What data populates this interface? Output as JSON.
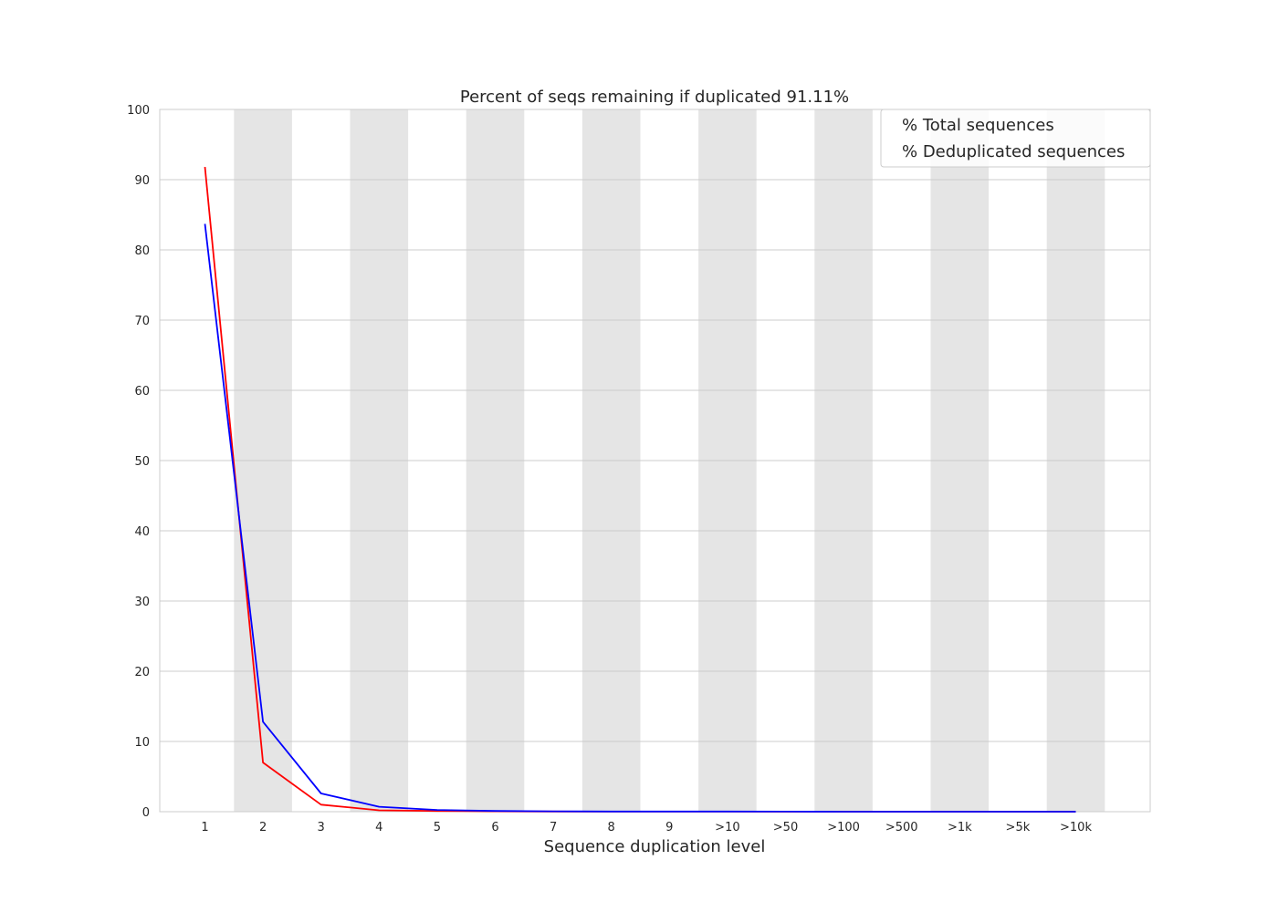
{
  "chart_data": {
    "type": "line",
    "title": "Percent of seqs remaining if duplicated 91.11%",
    "xlabel": "Sequence duplication level",
    "ylabel": "",
    "categories": [
      "1",
      "2",
      "3",
      "4",
      "5",
      "6",
      "7",
      "8",
      "9",
      ">10",
      ">50",
      ">100",
      ">500",
      ">1k",
      ">5k",
      ">10k"
    ],
    "ylim": [
      0,
      100
    ],
    "yticks": [
      0,
      10,
      20,
      30,
      40,
      50,
      60,
      70,
      80,
      90,
      100
    ],
    "grid": true,
    "shaded_bands": [
      "2",
      "4",
      "6",
      "8",
      ">10",
      ">100",
      ">1k",
      ">10k"
    ],
    "legend_position": "top-right",
    "series": [
      {
        "name": "% Total sequences",
        "color": "#ff0000",
        "values": [
          91.8,
          7.0,
          1.0,
          0.2,
          0.1,
          0.05,
          0.02,
          0.01,
          0.01,
          0.01,
          0.0,
          0.0,
          0.0,
          0.0,
          0.0,
          0.0
        ]
      },
      {
        "name": "% Deduplicated sequences",
        "color": "#0000ff",
        "values": [
          83.7,
          12.8,
          2.6,
          0.7,
          0.25,
          0.1,
          0.05,
          0.03,
          0.02,
          0.02,
          0.01,
          0.0,
          0.0,
          0.0,
          0.0,
          0.0
        ]
      }
    ],
    "colors": {
      "band": "#e5e5e5",
      "grid": "#cccccc",
      "frame": "#cccccc"
    }
  }
}
